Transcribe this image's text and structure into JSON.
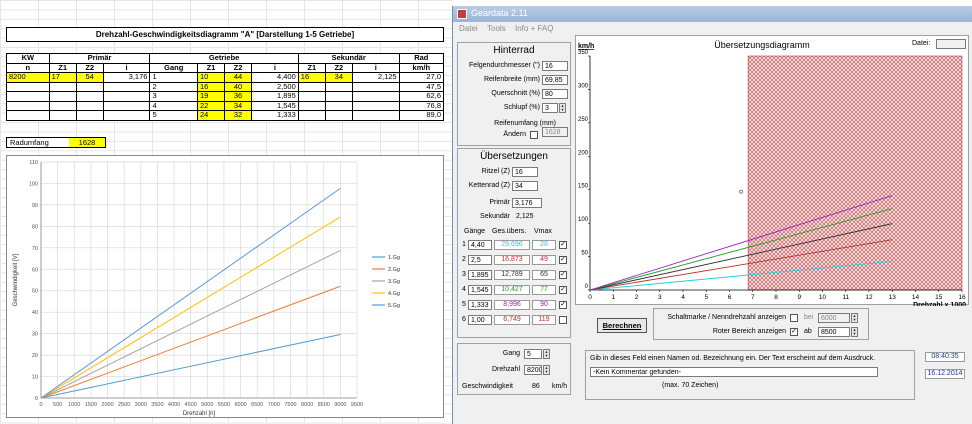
{
  "sheet": {
    "title": "Drehzahl-Geschwindigkeitsdiagramm \"A\" [Darstellung 1-5 Getriebe]",
    "headers1": [
      "KW",
      "Primär",
      "Getriebe",
      "Sekundär",
      "Rad"
    ],
    "headers2": [
      "n",
      "Z1",
      "Z2",
      "i",
      "Gang",
      "Z1",
      "Z2",
      "i",
      "Z1",
      "Z2",
      "i",
      "km/h"
    ],
    "kw": "8200",
    "primaer": {
      "z1": "17",
      "z2": "54",
      "i": "3,176"
    },
    "sekundaer": {
      "z1": "16",
      "z2": "34",
      "i": "2,125"
    },
    "gears": [
      {
        "gang": "1",
        "z1": "10",
        "z2": "44",
        "i": "4,400",
        "kmh": "27,0"
      },
      {
        "gang": "2",
        "z1": "16",
        "z2": "40",
        "i": "2,500",
        "kmh": "47,5"
      },
      {
        "gang": "3",
        "z1": "19",
        "z2": "36",
        "i": "1,895",
        "kmh": "62,6"
      },
      {
        "gang": "4",
        "z1": "22",
        "z2": "34",
        "i": "1,545",
        "kmh": "76,8"
      },
      {
        "gang": "5",
        "z1": "24",
        "z2": "32",
        "i": "1,333",
        "kmh": "89,0"
      }
    ],
    "radumfang_label": "Radumfang",
    "radumfang_value": "1628"
  },
  "chart_data": [
    {
      "type": "line",
      "title": "",
      "xlabel": "Drehzahl [n]",
      "ylabel": "Geschwindigkeit [V]",
      "x": [
        0,
        9000
      ],
      "xlim": [
        0,
        9500
      ],
      "ylim": [
        0,
        110
      ],
      "xticks": [
        0,
        500,
        1000,
        1500,
        2000,
        2500,
        3000,
        3500,
        4000,
        4500,
        5000,
        5500,
        6000,
        6500,
        7000,
        7500,
        8000,
        8500,
        9000,
        9500
      ],
      "yticks": [
        0,
        10,
        20,
        30,
        40,
        50,
        60,
        70,
        80,
        90,
        100,
        110
      ],
      "grid": true,
      "legend": "right",
      "series": [
        {
          "name": "1.Gg",
          "color": "#4f9fd0",
          "values": [
            0,
            29.6
          ]
        },
        {
          "name": "2.Gg",
          "color": "#ed7d31",
          "values": [
            0,
            52.1
          ]
        },
        {
          "name": "3.Gg",
          "color": "#a5a5a5",
          "values": [
            0,
            68.8
          ]
        },
        {
          "name": "4.Gg",
          "color": "#ffc000",
          "values": [
            0,
            84.4
          ]
        },
        {
          "name": "5.Gg",
          "color": "#5b9bd5",
          "values": [
            0,
            97.7
          ]
        }
      ]
    },
    {
      "type": "line",
      "title": "Übersetzungsdiagramm",
      "xlabel": "Drehzahl x 1000",
      "ylabel": "km/h",
      "x": [
        0,
        13
      ],
      "xlim": [
        0,
        16
      ],
      "ylim": [
        0,
        350
      ],
      "xticks": [
        0,
        1,
        2,
        3,
        4,
        5,
        6,
        7,
        8,
        9,
        10,
        11,
        12,
        13,
        14,
        15,
        16
      ],
      "yticks": [
        0,
        50,
        100,
        150,
        200,
        250,
        300,
        350
      ],
      "red_zone_from": 6.8,
      "grid": false,
      "series": [
        {
          "name": "1",
          "color": "#20d0e0",
          "values": [
            0,
            42.8
          ]
        },
        {
          "name": "2",
          "color": "#c03030",
          "values": [
            0,
            75.3
          ]
        },
        {
          "name": "3",
          "color": "#303030",
          "values": [
            0,
            99.3
          ]
        },
        {
          "name": "4",
          "color": "#20a020",
          "values": [
            0,
            121.8
          ]
        },
        {
          "name": "5",
          "color": "#a020c0",
          "values": [
            0,
            141.2
          ]
        }
      ]
    }
  ],
  "window": {
    "title": "Geardata 2.11",
    "menu": [
      "Datei",
      "Tools",
      "Info + FAQ"
    ],
    "hinterrad": {
      "title": "Hinterrad",
      "felgen_label": "Felgendurchmesser (\")",
      "felgen_value": "16",
      "reifenbreite_label": "Reifenbreite (mm)",
      "reifenbreite_value": "69,85",
      "querschnitt_label": "Querschnitt (%)",
      "querschnitt_value": "80",
      "schlupf_label": "Schlupf (%)",
      "schlupf_value": "3",
      "reifenumfang_label": "Reifenumfang (mm)",
      "reifenumfang_value": "1628",
      "aendern_label": "Ändern"
    },
    "uebersetzungen": {
      "title": "Übersetzungen",
      "ritzel_label": "Ritzel (Z)",
      "ritzel_value": "16",
      "kettenrad_label": "Kettenrad (Z)",
      "kettenrad_value": "34",
      "primaer_label": "Primär",
      "primaer_value": "3,176",
      "sekundaer_label": "Sekundär",
      "sekundaer_value": "2,125",
      "col_gaenge": "Gänge",
      "col_ges": "Ges.übers.",
      "col_vmax": "Vmax",
      "rows": [
        {
          "n": "1",
          "ratio": "4,40",
          "ges": "29,696",
          "vmax": "28",
          "color": "#20d0e0",
          "checked": true
        },
        {
          "n": "2",
          "ratio": "2,5",
          "ges": "16,873",
          "vmax": "49",
          "color": "#c03030",
          "checked": true
        },
        {
          "n": "3",
          "ratio": "1,895",
          "ges": "12,789",
          "vmax": "65",
          "color": "#303030",
          "checked": true
        },
        {
          "n": "4",
          "ratio": "1,545",
          "ges": "10,427",
          "vmax": "77",
          "color": "#20a020",
          "checked": true
        },
        {
          "n": "5",
          "ratio": "1,333",
          "ges": "8,996",
          "vmax": "90",
          "color": "#a020c0",
          "checked": true
        },
        {
          "n": "6",
          "ratio": "1,00",
          "ges": "6,749",
          "vmax": "119",
          "color": "#c03030",
          "checked": false
        }
      ]
    },
    "bottom_left": {
      "gang_label": "Gang",
      "gang_value": "5",
      "drehzahl_label": "Drehzahl",
      "drehzahl_value": "8200",
      "geschw_label": "Geschwindigkeit",
      "geschw_value": "86",
      "geschw_unit": "km/h"
    },
    "plot": {
      "datei_label": "Datei:",
      "xaxis_label": "Drehzahl x 1000"
    },
    "controls": {
      "berechnen": "Berechnen",
      "schaltmarke_label": "Schaltmarke / Nenndrehzahl anzeigen",
      "bei_label": "bei",
      "bei_value": "6000",
      "roter_label": "Roter Bereich anzeigen",
      "ab_label": "ab",
      "ab_value": "8500"
    },
    "comment": {
      "hint": "Gib in dieses Feld einen Namen od. Bezeichnung ein. Der Text erscheint auf dem Ausdruck.",
      "value": "-Kein Kommentar gefunden-",
      "maxlen": "(max. 70 Zeichen)"
    },
    "time": "08:40:35",
    "date": "16.12.2014"
  }
}
